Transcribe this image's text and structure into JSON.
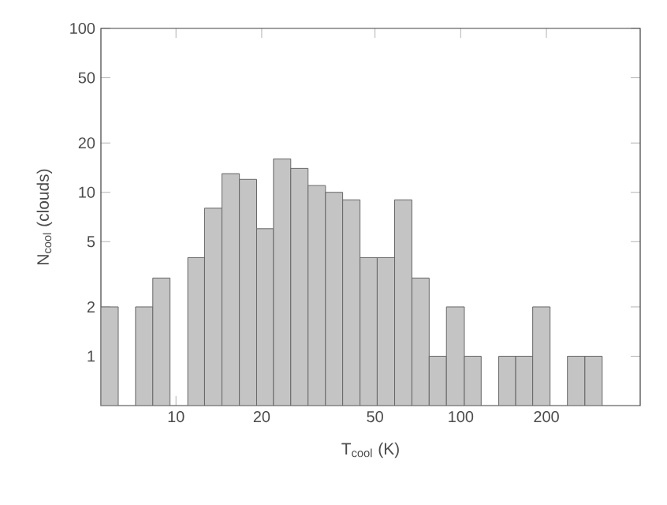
{
  "chart_data": {
    "type": "histogram",
    "xlabel": "T$_{cool}$ (K)",
    "ylabel": "N$_{cool}$  (clouds)",
    "log": "xy",
    "color": "#c4c4c4",
    "bins": [
      5.45,
      6.27,
      7.21,
      8.29,
      9.53,
      11.0,
      12.6,
      14.5,
      16.7,
      19.2,
      22.0,
      25.3,
      29.1,
      33.5,
      38.5,
      44.3,
      50.9,
      58.6,
      67.4,
      77.5,
      89.1,
      103,
      118,
      136,
      156,
      179,
      206,
      237,
      273,
      314
    ],
    "values": [
      2,
      null,
      2,
      3,
      null,
      4,
      8,
      13,
      12,
      6,
      16,
      14,
      11,
      10,
      9,
      4,
      4,
      9,
      3,
      1,
      2,
      1,
      null,
      1,
      1,
      2,
      null,
      1,
      1
    ],
    "xlim": [
      5.45,
      427
    ],
    "ylim": [
      0.5,
      100
    ],
    "xticks": [
      10,
      20,
      50,
      100,
      200
    ],
    "yticks": [
      1,
      2,
      5,
      10,
      20,
      50,
      100
    ]
  }
}
